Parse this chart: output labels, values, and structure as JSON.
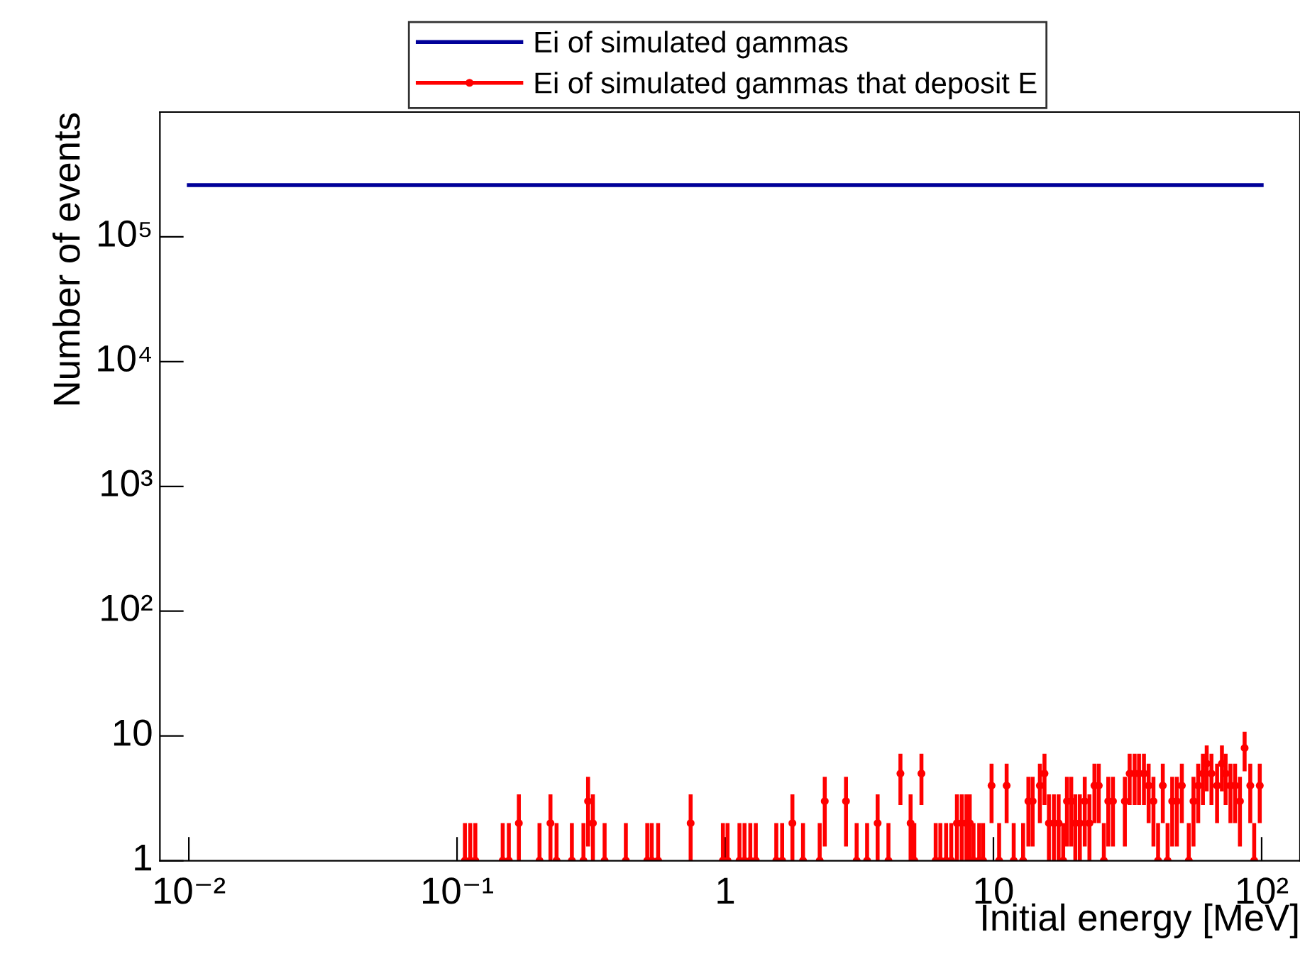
{
  "chart_data": {
    "type": "scatter",
    "xlabel": "Initial energy [MeV]",
    "ylabel": "Number of events",
    "log": "xy",
    "legend": "top",
    "grid": false,
    "marker": "circle",
    "xlim": [
      0.0078,
      139
    ],
    "ylim": [
      1,
      1000000
    ],
    "xticks": [
      {
        "value": 0.01,
        "label": "10⁻²"
      },
      {
        "value": 0.1,
        "label": "10⁻¹"
      },
      1,
      10,
      {
        "value": 100,
        "label": "10²"
      }
    ],
    "yticks": [
      1,
      10,
      {
        "value": 100,
        "label": "10²"
      },
      {
        "value": 1000,
        "label": "10³"
      },
      {
        "value": 10000,
        "label": "10⁴"
      },
      {
        "value": 100000,
        "label": "10⁵"
      }
    ],
    "series": [
      {
        "name": "Ei of simulated gammas",
        "type": "line",
        "marker": "none",
        "color": "#000099",
        "x": [
          0.01,
          100
        ],
        "values": [
          260000,
          260000
        ]
      },
      {
        "name": "Ei of simulated gammas that deposit E",
        "type": "scatter",
        "color": "#ff0000",
        "errors": [
          [
            1,
            2
          ],
          [
            1,
            2
          ],
          [
            1,
            2
          ],
          [
            1,
            2
          ],
          [
            1,
            2
          ],
          [
            1,
            3.4
          ],
          [
            1,
            2
          ],
          [
            1,
            3.4
          ],
          [
            1,
            2
          ],
          [
            1,
            2
          ],
          [
            1,
            2
          ],
          [
            1.3,
            4.7
          ],
          [
            1,
            3.4
          ],
          [
            1,
            2
          ],
          [
            1,
            2
          ],
          [
            1,
            2
          ],
          [
            1,
            2
          ],
          [
            1,
            2
          ],
          [
            1,
            3.4
          ],
          [
            1,
            2
          ],
          [
            1,
            2
          ],
          [
            1,
            2
          ],
          [
            1,
            2
          ],
          [
            1,
            2
          ],
          [
            1,
            2
          ],
          [
            1,
            2
          ],
          [
            1,
            2
          ],
          [
            1,
            3.4
          ],
          [
            1,
            2
          ],
          [
            1,
            2
          ],
          [
            1.3,
            4.7
          ],
          [
            1.3,
            4.7
          ],
          [
            1,
            2
          ],
          [
            1,
            2
          ],
          [
            1,
            3.4
          ],
          [
            1,
            2
          ],
          [
            2.8,
            7.2
          ],
          [
            1,
            3.4
          ],
          [
            1,
            2
          ],
          [
            2.8,
            7.2
          ],
          [
            1,
            2
          ],
          [
            1,
            2
          ],
          [
            1,
            2
          ],
          [
            1,
            2
          ],
          [
            1,
            3.4
          ],
          [
            1,
            3.4
          ],
          [
            1,
            3.4
          ],
          [
            1,
            3.4
          ],
          [
            1,
            2
          ],
          [
            1,
            2
          ],
          [
            1,
            2
          ],
          [
            2,
            6
          ],
          [
            1,
            2
          ],
          [
            2,
            6
          ],
          [
            1,
            2
          ],
          [
            1,
            2
          ],
          [
            1.3,
            4.7
          ],
          [
            1.3,
            4.7
          ],
          [
            2,
            6
          ],
          [
            2.8,
            7.2
          ],
          [
            1,
            3.4
          ],
          [
            1,
            3.4
          ],
          [
            1,
            3.4
          ],
          [
            1,
            2
          ],
          [
            1.3,
            4.7
          ],
          [
            1.3,
            4.7
          ],
          [
            1,
            3.4
          ],
          [
            1,
            3.4
          ],
          [
            1.3,
            4.7
          ],
          [
            1,
            3.4
          ],
          [
            2,
            6
          ],
          [
            2,
            6
          ],
          [
            1,
            2
          ],
          [
            1.3,
            4.7
          ],
          [
            1.3,
            4.7
          ],
          [
            1.3,
            4.7
          ],
          [
            2.8,
            7.2
          ],
          [
            2.8,
            7.2
          ],
          [
            2.8,
            7.2
          ],
          [
            2.8,
            7.2
          ],
          [
            2,
            6
          ],
          [
            1.3,
            4.7
          ],
          [
            1,
            2
          ],
          [
            2,
            6
          ],
          [
            1,
            2
          ],
          [
            1.3,
            4.7
          ],
          [
            1.3,
            4.7
          ],
          [
            2,
            6
          ],
          [
            1,
            2
          ],
          [
            1.3,
            4.7
          ],
          [
            2,
            6
          ],
          [
            2.8,
            7.2
          ],
          [
            3.6,
            8.4
          ],
          [
            2.8,
            7.2
          ],
          [
            2,
            6
          ],
          [
            3.6,
            8.4
          ],
          [
            2.8,
            7.2
          ],
          [
            2,
            6
          ],
          [
            2,
            6
          ],
          [
            1.3,
            4.7
          ],
          [
            5.2,
            10.8
          ],
          [
            2,
            6
          ],
          [
            1,
            2
          ],
          [
            2,
            6
          ]
        ],
        "x": [
          0.107,
          0.112,
          0.117,
          0.148,
          0.156,
          0.17,
          0.203,
          0.223,
          0.235,
          0.268,
          0.296,
          0.308,
          0.321,
          0.355,
          0.426,
          0.512,
          0.532,
          0.562,
          0.743,
          0.98,
          1.02,
          1.13,
          1.18,
          1.24,
          1.3,
          1.55,
          1.63,
          1.78,
          1.95,
          2.25,
          2.35,
          2.82,
          3.09,
          3.38,
          3.7,
          4.06,
          4.5,
          4.91,
          5.07,
          5.39,
          6.09,
          6.34,
          6.66,
          6.96,
          7.31,
          7.62,
          7.93,
          8.16,
          8.43,
          8.85,
          9.15,
          9.84,
          10.5,
          11.2,
          11.9,
          12.9,
          13.5,
          14.0,
          14.9,
          15.5,
          16.1,
          16.8,
          17.5,
          18.2,
          18.8,
          19.5,
          20.2,
          21.0,
          21.9,
          22.8,
          23.8,
          24.7,
          25.8,
          26.8,
          27.9,
          30.9,
          32.2,
          33.6,
          34.9,
          36.4,
          37.9,
          39.5,
          41.1,
          42.8,
          44.6,
          46.4,
          48.3,
          50.4,
          53.5,
          55.7,
          58.0,
          60.4,
          62.4,
          65.0,
          68.2,
          71.1,
          73.4,
          76.5,
          79.6,
          83.0,
          86.4,
          90.7,
          93.8,
          98.4
        ],
        "values": [
          1,
          1,
          1,
          1,
          1,
          2,
          1,
          2,
          1,
          1,
          1,
          3,
          2,
          1,
          1,
          1,
          1,
          1,
          2,
          1,
          1,
          1,
          1,
          1,
          1,
          1,
          1,
          2,
          1,
          1,
          3,
          3,
          1,
          1,
          2,
          1,
          5,
          2,
          1,
          5,
          1,
          1,
          1,
          1,
          2,
          2,
          2,
          2,
          1,
          1,
          1,
          4,
          1,
          4,
          1,
          1,
          3,
          3,
          4,
          5,
          2,
          2,
          2,
          1,
          3,
          3,
          2,
          2,
          3,
          2,
          4,
          4,
          1,
          3,
          3,
          3,
          5,
          5,
          5,
          5,
          4,
          3,
          1,
          4,
          1,
          3,
          3,
          4,
          1,
          3,
          4,
          5,
          6,
          5,
          4,
          6,
          5,
          4,
          4,
          3,
          8,
          4,
          1,
          4
        ]
      }
    ]
  }
}
